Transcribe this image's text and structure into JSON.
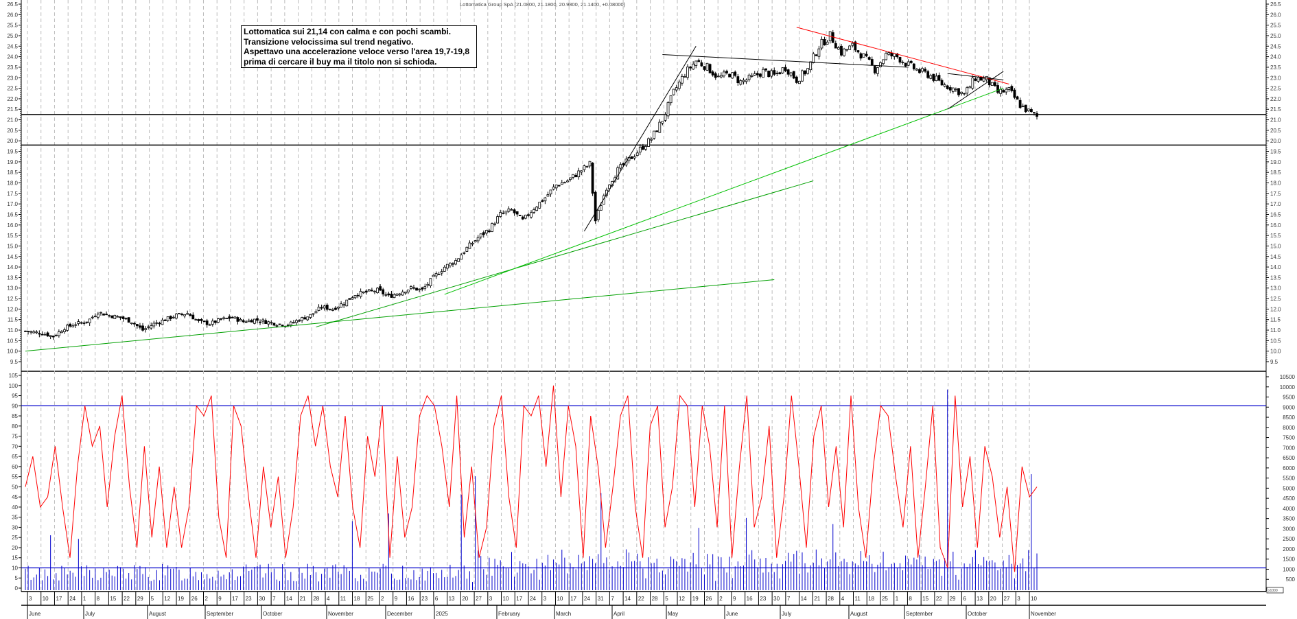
{
  "chart_data": {
    "type": "candlestick",
    "title": "Lottomatica Group SpA (21.0800, 21.1800, 20.9800, 21.1400, +0.08000)",
    "last_quote": {
      "open": 21.08,
      "high": 21.18,
      "low": 20.98,
      "close": 21.14,
      "change": 0.08
    },
    "annotation_lines": [
      "Lottomatica sui 21,14 con calma e con pochi scambi.",
      "Transizione velocissima sul trend negativo.",
      "Aspettavo una accelerazione veloce verso l'area 19,7-19,8",
      "prima di cercare il buy ma il titolo non si schioda."
    ],
    "price_panel": {
      "ylim": [
        9.5,
        26.5
      ],
      "y_ticks": [
        "26.5",
        "26.0",
        "25.5",
        "25.0",
        "24.5",
        "24.0",
        "23.5",
        "23.0",
        "22.5",
        "22.0",
        "21.5",
        "21.0",
        "20.5",
        "20.0",
        "19.5",
        "19.0",
        "18.5",
        "18.0",
        "17.5",
        "17.0",
        "16.5",
        "16.0",
        "15.5",
        "15.0",
        "14.5",
        "14.0",
        "13.5",
        "13.0",
        "12.5",
        "12.0",
        "11.5",
        "11.0",
        "10.5",
        "10.0",
        "9.5"
      ],
      "horizontal_lines": [
        21.25,
        19.8
      ],
      "close_series_approx": [
        [
          0,
          10.95
        ],
        [
          6,
          10.85
        ],
        [
          10,
          10.7
        ],
        [
          14,
          11.1
        ],
        [
          18,
          11.3
        ],
        [
          22,
          11.4
        ],
        [
          26,
          11.85
        ],
        [
          30,
          11.7
        ],
        [
          34,
          11.6
        ],
        [
          38,
          11.4
        ],
        [
          42,
          11.0
        ],
        [
          46,
          11.3
        ],
        [
          50,
          11.5
        ],
        [
          54,
          11.7
        ],
        [
          58,
          11.8
        ],
        [
          62,
          11.4
        ],
        [
          66,
          11.3
        ],
        [
          70,
          11.5
        ],
        [
          74,
          11.6
        ],
        [
          78,
          11.4
        ],
        [
          82,
          11.5
        ],
        [
          86,
          11.4
        ],
        [
          90,
          11.3
        ],
        [
          94,
          11.25
        ],
        [
          98,
          11.5
        ],
        [
          102,
          11.7
        ],
        [
          106,
          12.1
        ],
        [
          110,
          12.0
        ],
        [
          114,
          12.3
        ],
        [
          118,
          12.7
        ],
        [
          122,
          12.8
        ],
        [
          126,
          12.9
        ],
        [
          130,
          12.6
        ],
        [
          134,
          12.8
        ],
        [
          138,
          13.0
        ],
        [
          142,
          12.9
        ],
        [
          146,
          13.5
        ],
        [
          150,
          14.0
        ],
        [
          154,
          14.3
        ],
        [
          158,
          14.9
        ],
        [
          162,
          15.4
        ],
        [
          166,
          15.8
        ],
        [
          170,
          16.5
        ],
        [
          174,
          16.7
        ],
        [
          178,
          16.2
        ],
        [
          182,
          16.8
        ],
        [
          186,
          17.3
        ],
        [
          190,
          17.9
        ],
        [
          194,
          18.1
        ],
        [
          198,
          18.5
        ],
        [
          202,
          18.9
        ],
        [
          204,
          16.2
        ],
        [
          208,
          17.8
        ],
        [
          212,
          18.6
        ],
        [
          216,
          19.1
        ],
        [
          220,
          19.6
        ],
        [
          224,
          20.1
        ],
        [
          228,
          21.0
        ],
        [
          232,
          22.3
        ],
        [
          236,
          23.2
        ],
        [
          240,
          23.8
        ],
        [
          244,
          23.5
        ],
        [
          248,
          23.0
        ],
        [
          252,
          23.2
        ],
        [
          256,
          22.8
        ],
        [
          260,
          23.0
        ],
        [
          264,
          23.3
        ],
        [
          268,
          23.1
        ],
        [
          272,
          23.5
        ],
        [
          276,
          22.9
        ],
        [
          280,
          23.4
        ],
        [
          284,
          24.5
        ],
        [
          288,
          25.0
        ],
        [
          292,
          24.2
        ],
        [
          296,
          24.5
        ],
        [
          300,
          24.0
        ],
        [
          304,
          23.4
        ],
        [
          308,
          24.1
        ],
        [
          312,
          24.0
        ],
        [
          316,
          23.6
        ],
        [
          320,
          23.3
        ],
        [
          324,
          23.1
        ],
        [
          328,
          22.7
        ],
        [
          332,
          22.5
        ],
        [
          336,
          22.2
        ],
        [
          340,
          23.0
        ],
        [
          344,
          22.9
        ],
        [
          348,
          22.3
        ],
        [
          352,
          22.4
        ],
        [
          356,
          21.7
        ],
        [
          360,
          21.3
        ],
        [
          362,
          21.14
        ]
      ],
      "trendlines": [
        {
          "color": "#00a000",
          "from": [
            0,
            10.0
          ],
          "to": [
            268,
            13.4
          ]
        },
        {
          "color": "#00a000",
          "from": [
            104,
            11.15
          ],
          "to": [
            282,
            18.1
          ]
        },
        {
          "color": "#00c000",
          "from": [
            150,
            12.7
          ],
          "to": [
            350,
            22.5
          ]
        },
        {
          "color": "#000000",
          "from": [
            200,
            15.7
          ],
          "to": [
            240,
            24.5
          ]
        },
        {
          "color": "#000000",
          "from": [
            228,
            24.1
          ],
          "to": [
            316,
            23.5
          ]
        },
        {
          "color": "#ff0000",
          "from": [
            276,
            25.4
          ],
          "to": [
            352,
            22.7
          ]
        },
        {
          "color": "#000000",
          "from": [
            330,
            21.5
          ],
          "to": [
            350,
            23.3
          ]
        },
        {
          "color": "#000000",
          "from": [
            330,
            23.2
          ],
          "to": [
            350,
            22.9
          ]
        }
      ]
    },
    "oscillator_panel": {
      "ylim": [
        0,
        105
      ],
      "y_ticks": [
        "105",
        "100",
        "95",
        "90",
        "85",
        "80",
        "75",
        "70",
        "65",
        "60",
        "55",
        "50",
        "45",
        "40",
        "35",
        "30",
        "25",
        "20",
        "15",
        "10",
        "5",
        "0"
      ],
      "levels": [
        90,
        10
      ],
      "series_color": "#ff0000",
      "values_approx": [
        50,
        65,
        40,
        45,
        70,
        40,
        15,
        60,
        90,
        70,
        80,
        40,
        75,
        95,
        50,
        20,
        70,
        25,
        60,
        20,
        50,
        20,
        40,
        90,
        85,
        95,
        35,
        15,
        90,
        80,
        45,
        15,
        60,
        30,
        55,
        15,
        40,
        85,
        95,
        70,
        90,
        60,
        45,
        85,
        40,
        20,
        75,
        55,
        90,
        15,
        65,
        25,
        40,
        85,
        95,
        90,
        70,
        40,
        95,
        25,
        60,
        15,
        30,
        80,
        95,
        45,
        20,
        90,
        85,
        95,
        60,
        100,
        45,
        90,
        70,
        15,
        85,
        60,
        20,
        50,
        85,
        95,
        40,
        15,
        80,
        90,
        30,
        50,
        95,
        90,
        40,
        90,
        70,
        30,
        90,
        15,
        60,
        95,
        30,
        45,
        80,
        15,
        45,
        95,
        60,
        20,
        75,
        90,
        40,
        70,
        30,
        95,
        40,
        15,
        60,
        90,
        85,
        55,
        30,
        70,
        15,
        50,
        90,
        20,
        10,
        95,
        40,
        65,
        20,
        70,
        55,
        25,
        50,
        8,
        60,
        45,
        50
      ]
    },
    "volume_panel": {
      "ylim": [
        0,
        10500
      ],
      "y_ticks": [
        "10500",
        "10000",
        "9500",
        "9000",
        "8500",
        "8000",
        "7500",
        "7000",
        "6500",
        "6000",
        "5500",
        "5000",
        "4500",
        "4000",
        "3500",
        "3000",
        "2500",
        "2000",
        "1500",
        "1000",
        "500"
      ],
      "unit_label": "x1000",
      "bar_color": "#0000cc"
    },
    "x_axis": {
      "day_ticks": [
        "3",
        "10",
        "17",
        "24",
        "1",
        "8",
        "15",
        "22",
        "29",
        "5",
        "12",
        "19",
        "26",
        "2",
        "9",
        "17",
        "23",
        "30",
        "7",
        "14",
        "21",
        "28",
        "4",
        "11",
        "18",
        "25",
        "2",
        "9",
        "16",
        "23",
        "6",
        "13",
        "20",
        "27",
        "3",
        "10",
        "17",
        "24",
        "3",
        "10",
        "17",
        "24",
        "31",
        "7",
        "14",
        "22",
        "28",
        "5",
        "12",
        "19",
        "26",
        "2",
        "9",
        "16",
        "23",
        "30",
        "7",
        "14",
        "21",
        "28",
        "4",
        "11",
        "18",
        "25",
        "1",
        "8",
        "15",
        "22",
        "29",
        "6",
        "13",
        "20",
        "27",
        "3",
        "10"
      ],
      "months": [
        "June",
        "July",
        "August",
        "September",
        "October",
        "November",
        "December",
        "2025",
        "February",
        "March",
        "April",
        "May",
        "June",
        "July",
        "August",
        "September",
        "October",
        "November"
      ]
    }
  }
}
